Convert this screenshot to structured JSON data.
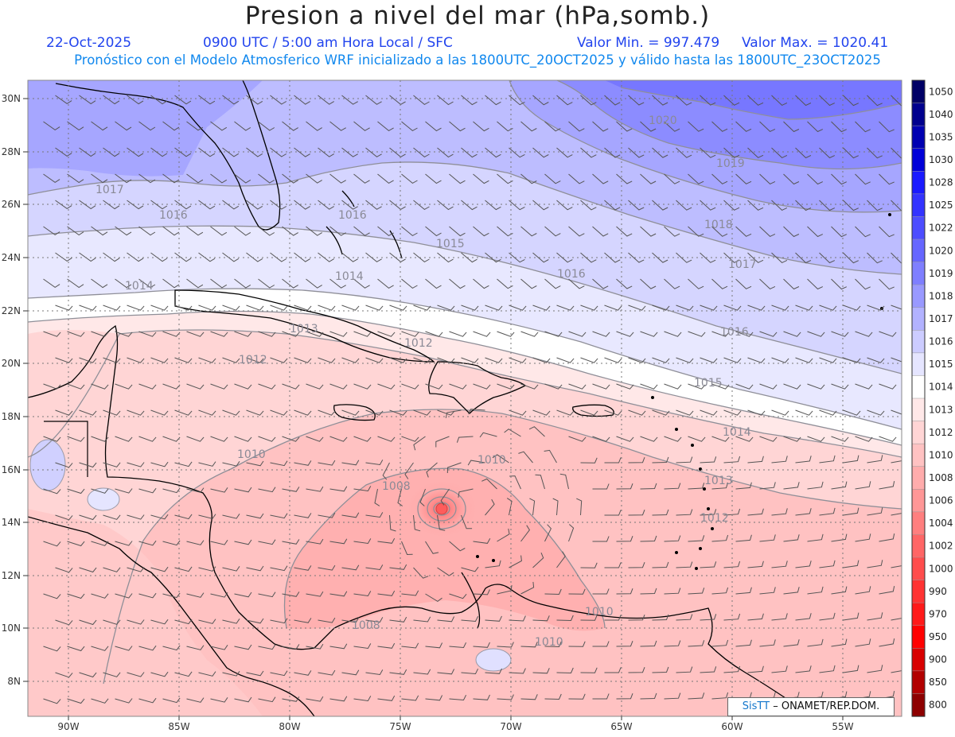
{
  "header": {
    "title": "Presion a nivel del mar (hPa,somb.)",
    "date": "22-Oct-2025",
    "time": "0900 UTC / 5:00 am Hora Local / SFC",
    "vmin": "Valor Min. = 997.479",
    "vmax": "Valor Max. = 1020.41",
    "subtitle": "Pronóstico con el Modelo Atmosferico WRF inicializado a las 1800UTC_20OCT2025 y válido hasta las  1800UTC_23OCT2025"
  },
  "map": {
    "lat_labels": [
      "30N",
      "28N",
      "26N",
      "24N",
      "22N",
      "20N",
      "18N",
      "16N",
      "14N",
      "12N",
      "10N",
      "8N"
    ],
    "lon_labels": [
      "90W",
      "85W",
      "80W",
      "75W",
      "70W",
      "65W",
      "60W",
      "55W"
    ],
    "isobars": [
      {
        "text": "1020"
      },
      {
        "text": "1019"
      },
      {
        "text": "1018"
      },
      {
        "text": "1017"
      },
      {
        "text": "1017"
      },
      {
        "text": "1016"
      },
      {
        "text": "1016"
      },
      {
        "text": "1016"
      },
      {
        "text": "1016"
      },
      {
        "text": "1015"
      },
      {
        "text": "1015"
      },
      {
        "text": "1014"
      },
      {
        "text": "1014"
      },
      {
        "text": "1014"
      },
      {
        "text": "1013"
      },
      {
        "text": "1013"
      },
      {
        "text": "1012"
      },
      {
        "text": "1012"
      },
      {
        "text": "1012"
      },
      {
        "text": "1010"
      },
      {
        "text": "1010"
      },
      {
        "text": "1010"
      },
      {
        "text": "1010"
      },
      {
        "text": "1008"
      },
      {
        "text": "1008"
      }
    ]
  },
  "legend": {
    "labels": [
      "1050",
      "1040",
      "1035",
      "1030",
      "1028",
      "1025",
      "1022",
      "1020",
      "1019",
      "1018",
      "1017",
      "1016",
      "1015",
      "1014",
      "1013",
      "1012",
      "1010",
      "1008",
      "1006",
      "1004",
      "1002",
      "1000",
      "990",
      "970",
      "950",
      "900",
      "850",
      "800"
    ],
    "colors": [
      "#000066",
      "#00008e",
      "#0000b2",
      "#0000d8",
      "#1a1aff",
      "#3333ff",
      "#4d4dff",
      "#6666ff",
      "#7f7fff",
      "#9999ff",
      "#b2b2ff",
      "#ccccff",
      "#e5e5ff",
      "#ffffff",
      "#ffe8e8",
      "#ffd5d5",
      "#ffc2c2",
      "#ffacac",
      "#ff9797",
      "#ff7f7f",
      "#ff6666",
      "#ff4d4d",
      "#ff3333",
      "#ff1a1a",
      "#ff0000",
      "#d80000",
      "#b20000",
      "#8e0000"
    ]
  },
  "credit": {
    "sis": "SisTT",
    "org": "– ONAMET/REP.DOM."
  }
}
